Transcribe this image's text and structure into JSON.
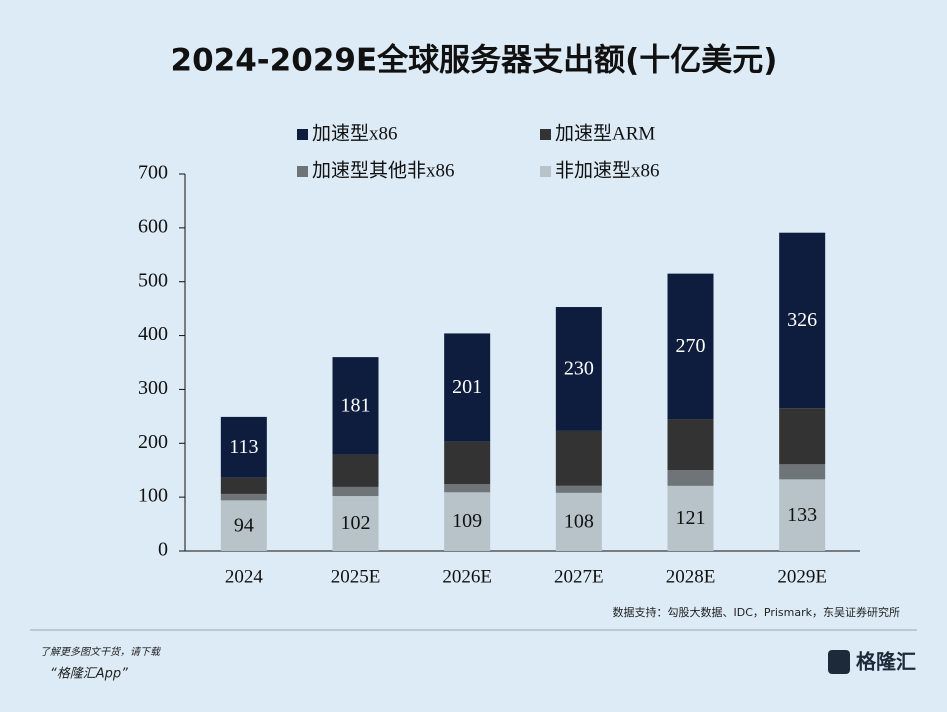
{
  "chart_data": {
    "type": "stacked-bar",
    "title": "2024-2029E全球服务器支出额(十亿美元)",
    "categories": [
      "2024",
      "2025E",
      "2026E",
      "2027E",
      "2028E",
      "2029E"
    ],
    "series": [
      {
        "name": "非加速型x86",
        "color": "#b7c3c8",
        "values": [
          94,
          102,
          109,
          108,
          121,
          133
        ],
        "labels": true
      },
      {
        "name": "加速型其他非x86",
        "color": "#6e7478",
        "values": [
          12,
          17,
          15,
          13,
          29,
          28
        ],
        "labels": false
      },
      {
        "name": "加速型ARM",
        "color": "#333333",
        "values": [
          30,
          60,
          79,
          102,
          95,
          104
        ],
        "labels": false
      },
      {
        "name": "加速型x86",
        "color": "#0e1d3d",
        "values": [
          113,
          181,
          201,
          230,
          270,
          326
        ],
        "labels": true
      }
    ],
    "ylim": [
      0,
      700
    ],
    "yticks": [
      0,
      100,
      200,
      300,
      400,
      500,
      600,
      700
    ],
    "source": "数据支持：勾股大数据、IDC，Prismark，东吴证券研究所"
  },
  "footer": {
    "line1": "了解更多图文干货，请下载",
    "line2": "“格隆汇App”",
    "logo": "格隆汇"
  }
}
